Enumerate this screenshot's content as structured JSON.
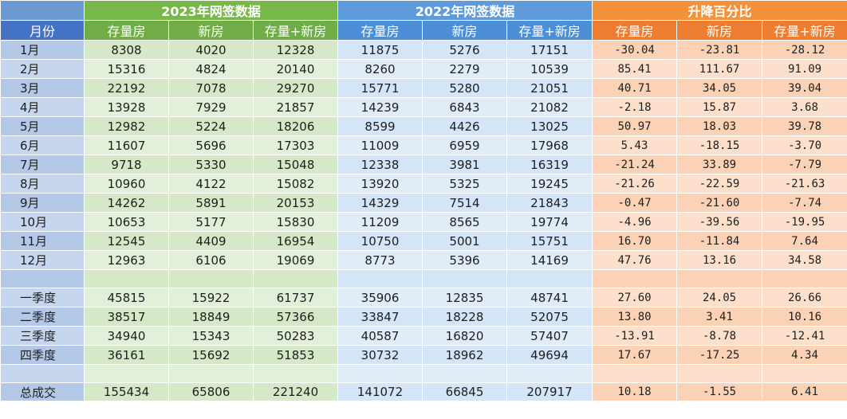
{
  "header": {
    "group_2023": "2023年网签数据",
    "group_2022": "2022年网签数据",
    "group_change": "升降百分比",
    "month_col": "月份",
    "cols_2023": [
      "存量房",
      "新房",
      "存量+新房"
    ],
    "cols_2022": [
      "存量房",
      "新房",
      "存量+新房"
    ],
    "cols_change": [
      "存量房",
      "新房",
      "存量+新房"
    ]
  },
  "rows": [
    {
      "label": "1月",
      "y2023": [
        "8308",
        "4020",
        "12328"
      ],
      "y2022": [
        "11875",
        "5276",
        "17151"
      ],
      "change": [
        "-30.04",
        "-23.81",
        "-28.12"
      ]
    },
    {
      "label": "2月",
      "y2023": [
        "15316",
        "4824",
        "20140"
      ],
      "y2022": [
        "8260",
        "2279",
        "10539"
      ],
      "change": [
        "85.41",
        "111.67",
        "91.09"
      ]
    },
    {
      "label": "3月",
      "y2023": [
        "22192",
        "7078",
        "29270"
      ],
      "y2022": [
        "15771",
        "5280",
        "21051"
      ],
      "change": [
        "40.71",
        "34.05",
        "39.04"
      ]
    },
    {
      "label": "4月",
      "y2023": [
        "13928",
        "7929",
        "21857"
      ],
      "y2022": [
        "14239",
        "6843",
        "21082"
      ],
      "change": [
        "-2.18",
        "15.87",
        "3.68"
      ]
    },
    {
      "label": "5月",
      "y2023": [
        "12982",
        "5224",
        "18206"
      ],
      "y2022": [
        "8599",
        "4426",
        "13025"
      ],
      "change": [
        "50.97",
        "18.03",
        "39.78"
      ]
    },
    {
      "label": "6月",
      "y2023": [
        "11607",
        "5696",
        "17303"
      ],
      "y2022": [
        "11009",
        "6959",
        "17968"
      ],
      "change": [
        "5.43",
        "-18.15",
        "-3.70"
      ]
    },
    {
      "label": "7月",
      "y2023": [
        "9718",
        "5330",
        "15048"
      ],
      "y2022": [
        "12338",
        "3981",
        "16319"
      ],
      "change": [
        "-21.24",
        "33.89",
        "-7.79"
      ]
    },
    {
      "label": "8月",
      "y2023": [
        "10960",
        "4122",
        "15082"
      ],
      "y2022": [
        "13920",
        "5325",
        "19245"
      ],
      "change": [
        "-21.26",
        "-22.59",
        "-21.63"
      ]
    },
    {
      "label": "9月",
      "y2023": [
        "14262",
        "5891",
        "20153"
      ],
      "y2022": [
        "14329",
        "7514",
        "21843"
      ],
      "change": [
        "-0.47",
        "-21.60",
        "-7.74"
      ]
    },
    {
      "label": "10月",
      "y2023": [
        "10653",
        "5177",
        "15830"
      ],
      "y2022": [
        "11209",
        "8565",
        "19774"
      ],
      "change": [
        "-4.96",
        "-39.56",
        "-19.95"
      ]
    },
    {
      "label": "11月",
      "y2023": [
        "12545",
        "4409",
        "16954"
      ],
      "y2022": [
        "10750",
        "5001",
        "15751"
      ],
      "change": [
        "16.70",
        "-11.84",
        "7.64"
      ]
    },
    {
      "label": "12月",
      "y2023": [
        "12963",
        "6106",
        "19069"
      ],
      "y2022": [
        "8773",
        "5396",
        "14169"
      ],
      "change": [
        "47.76",
        "13.16",
        "34.58"
      ]
    },
    {
      "label": "",
      "y2023": [
        "",
        "",
        ""
      ],
      "y2022": [
        "",
        "",
        ""
      ],
      "change": [
        "",
        "",
        ""
      ]
    },
    {
      "label": "一季度",
      "y2023": [
        "45815",
        "15922",
        "61737"
      ],
      "y2022": [
        "35906",
        "12835",
        "48741"
      ],
      "change": [
        "27.60",
        "24.05",
        "26.66"
      ]
    },
    {
      "label": "二季度",
      "y2023": [
        "38517",
        "18849",
        "57366"
      ],
      "y2022": [
        "33847",
        "18228",
        "52075"
      ],
      "change": [
        "13.80",
        "3.41",
        "10.16"
      ]
    },
    {
      "label": "三季度",
      "y2023": [
        "34940",
        "15343",
        "50283"
      ],
      "y2022": [
        "40587",
        "16820",
        "57407"
      ],
      "change": [
        "-13.91",
        "-8.78",
        "-12.41"
      ]
    },
    {
      "label": "四季度",
      "y2023": [
        "36161",
        "15692",
        "51853"
      ],
      "y2022": [
        "30732",
        "18962",
        "49694"
      ],
      "change": [
        "17.67",
        "-17.25",
        "4.34"
      ]
    },
    {
      "label": "",
      "y2023": [
        "",
        "",
        ""
      ],
      "y2022": [
        "",
        "",
        ""
      ],
      "change": [
        "",
        "",
        ""
      ]
    },
    {
      "label": "总成交",
      "y2023": [
        "155434",
        "65806",
        "221240"
      ],
      "y2022": [
        "141072",
        "66845",
        "207917"
      ],
      "change": [
        "10.18",
        "-1.55",
        "6.41"
      ]
    }
  ]
}
